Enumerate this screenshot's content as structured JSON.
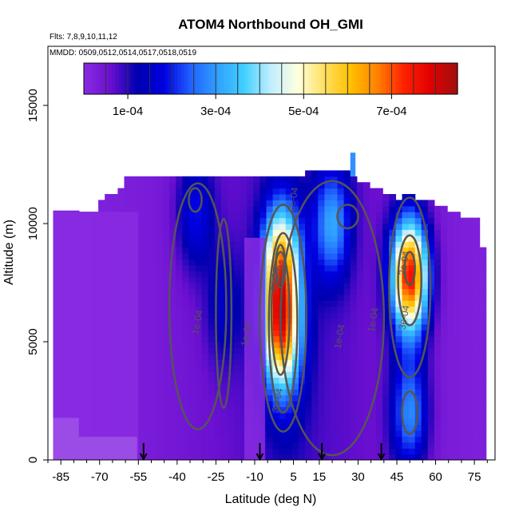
{
  "chart_data": {
    "type": "heatmap",
    "title": "ATOM4 Northbound OH_GMI",
    "annotations": [
      "Flts: 7,8,9,10,11,12",
      "MMDD: 0509,0512,0514,0517,0518,0519"
    ],
    "xlabel": "Latitude (deg N)",
    "ylabel": "Altitude (m)",
    "xlim": [
      -90,
      83
    ],
    "ylim": [
      0,
      17500
    ],
    "x_ticks": [
      -85,
      -70,
      -55,
      -40,
      -25,
      -10,
      5,
      15,
      30,
      45,
      60,
      75
    ],
    "y_ticks": [
      0,
      5000,
      10000,
      15000
    ],
    "colorbar": {
      "range": [
        0,
        0.00085
      ],
      "ticks": [
        "1e-04",
        "3e-04",
        "5e-04",
        "7e-04"
      ],
      "tick_values": [
        0.0001,
        0.0003,
        0.0005,
        0.0007
      ],
      "colors": [
        "#8a2be2",
        "#6a0fd0",
        "#0000b0",
        "#0000e0",
        "#2060ff",
        "#30a0ff",
        "#40d0ff",
        "#c0eeff",
        "#ffffe0",
        "#ffe060",
        "#ffc000",
        "#ff8000",
        "#ff2000",
        "#e00000",
        "#a01010"
      ]
    },
    "contour_labels": [
      "1e-04",
      "1e-04",
      "1e-04",
      "1e-04",
      "2e-04",
      "3e-04",
      "3e-04",
      "3e-04",
      "4e-04",
      "2e-04"
    ],
    "flight_markers_lat": [
      -53,
      -8,
      16,
      39
    ],
    "features": [
      {
        "lat": 0,
        "alt": 5500,
        "value": 0.00056
      },
      {
        "lat": 0,
        "alt": 8500,
        "value": 0.0005
      },
      {
        "lat": 50,
        "alt": 7800,
        "value": 0.00078
      },
      {
        "lat": 50,
        "alt": 2000,
        "value": 0.0003
      },
      {
        "lat": 20,
        "alt": 10000,
        "value": 0.0003
      },
      {
        "lat": -33,
        "alt": 10500,
        "value": 0.0002
      },
      {
        "lat": -22,
        "alt": 6500,
        "value": 0.00015
      }
    ]
  }
}
